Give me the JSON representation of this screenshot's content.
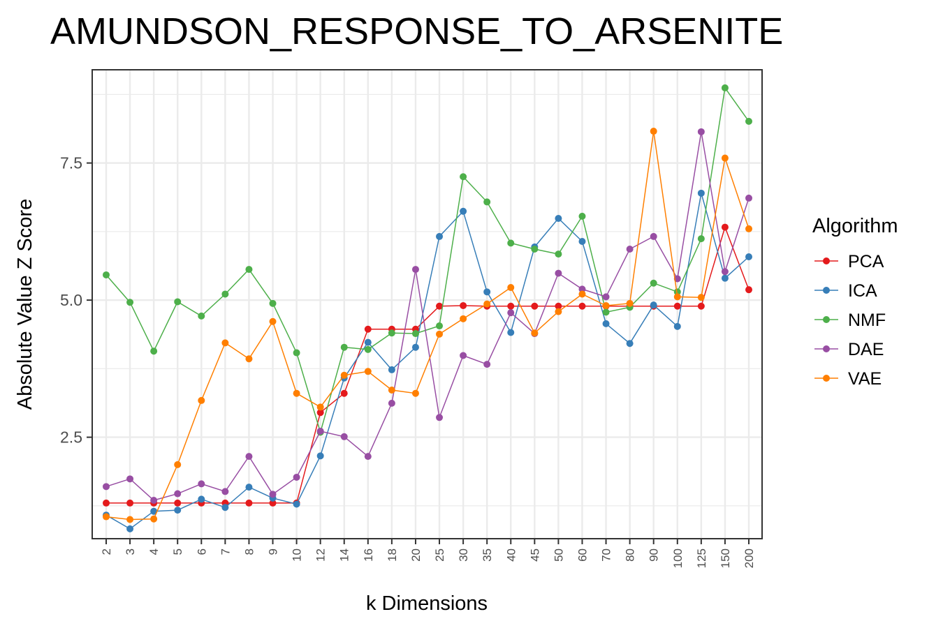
{
  "chart_data": {
    "type": "line",
    "title": "AMUNDSON_RESPONSE_TO_ARSENITE",
    "xlabel": "k Dimensions",
    "ylabel": "Absolute Value Z Score",
    "categories": [
      "2",
      "3",
      "4",
      "5",
      "6",
      "7",
      "8",
      "9",
      "10",
      "12",
      "14",
      "16",
      "18",
      "20",
      "25",
      "30",
      "35",
      "40",
      "45",
      "50",
      "60",
      "70",
      "80",
      "90",
      "100",
      "125",
      "150",
      "200"
    ],
    "yticks": [
      2.5,
      5.0,
      7.5
    ],
    "ytick_labels": [
      "2.5",
      "5.0",
      "7.5"
    ],
    "ylim": [
      0.65,
      9.2
    ],
    "grid": true,
    "legend": {
      "title": "Algorithm",
      "position": "right"
    },
    "series": [
      {
        "name": "PCA",
        "color": "#e41a1c",
        "values": [
          1.3,
          1.3,
          1.3,
          1.3,
          1.3,
          1.3,
          1.3,
          1.3,
          1.3,
          2.95,
          3.3,
          4.47,
          4.47,
          4.47,
          4.89,
          4.9,
          4.89,
          4.89,
          4.89,
          4.89,
          4.89,
          4.89,
          4.89,
          4.89,
          4.89,
          4.89,
          6.33,
          5.19
        ]
      },
      {
        "name": "ICA",
        "color": "#377eb8",
        "values": [
          1.08,
          0.83,
          1.15,
          1.17,
          1.37,
          1.22,
          1.59,
          1.39,
          1.28,
          2.16,
          3.58,
          4.23,
          3.73,
          4.14,
          6.16,
          6.62,
          5.15,
          4.41,
          5.97,
          6.49,
          6.07,
          4.57,
          4.21,
          4.91,
          4.52,
          6.95,
          5.4,
          5.79
        ]
      },
      {
        "name": "NMF",
        "color": "#4daf4a",
        "values": [
          5.46,
          4.96,
          4.07,
          4.97,
          4.71,
          5.11,
          5.56,
          4.94,
          4.04,
          2.59,
          4.14,
          4.1,
          4.4,
          4.39,
          4.53,
          7.25,
          6.79,
          6.04,
          5.93,
          5.84,
          6.53,
          4.78,
          4.87,
          5.31,
          5.15,
          6.12,
          8.87,
          8.26
        ]
      },
      {
        "name": "DAE",
        "color": "#984ea3",
        "values": [
          1.6,
          1.74,
          1.35,
          1.47,
          1.65,
          1.51,
          2.15,
          1.46,
          1.77,
          2.61,
          2.51,
          2.15,
          3.12,
          5.56,
          2.86,
          3.99,
          3.83,
          4.77,
          4.39,
          5.49,
          5.2,
          5.06,
          5.93,
          6.16,
          5.39,
          8.07,
          5.52,
          6.86
        ]
      },
      {
        "name": "VAE",
        "color": "#ff7f00",
        "values": [
          1.05,
          1.0,
          1.01,
          2.0,
          3.17,
          4.22,
          3.93,
          4.61,
          3.3,
          3.05,
          3.63,
          3.7,
          3.36,
          3.3,
          4.38,
          4.66,
          4.93,
          5.23,
          4.4,
          4.79,
          5.11,
          4.9,
          4.94,
          8.08,
          5.06,
          5.05,
          7.59,
          6.3
        ]
      }
    ]
  }
}
